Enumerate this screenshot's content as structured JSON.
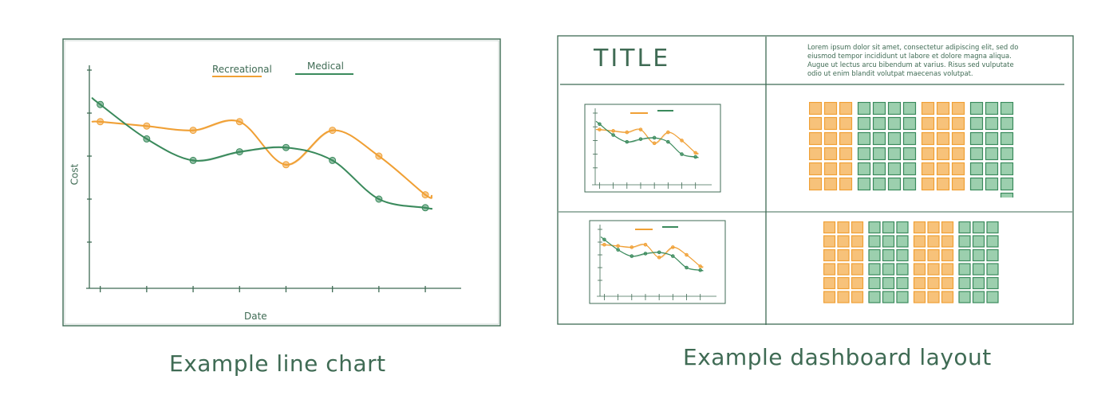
{
  "captions": {
    "line_chart": "Example line chart",
    "dashboard": "Example dashboard layout"
  },
  "colors": {
    "ink": "#3f6b54",
    "recreational": "#f0a035",
    "medical": "#3a8a5c",
    "tile_orange_fill": "#f7c27a",
    "tile_green_fill": "#9ccfae"
  },
  "chart_data": {
    "type": "line",
    "xlabel": "Date",
    "ylabel": "Cost",
    "x": [
      1,
      2,
      3,
      4,
      5,
      6,
      7,
      8
    ],
    "series": [
      {
        "name": "Recreational",
        "values": [
          3.8,
          3.7,
          3.6,
          3.8,
          2.8,
          3.6,
          3.0,
          2.1
        ]
      },
      {
        "name": "Medical",
        "values": [
          4.2,
          3.4,
          2.9,
          3.1,
          3.2,
          2.9,
          2.0,
          1.8
        ]
      }
    ],
    "grid": false
  },
  "dashboard": {
    "title": "TITLE",
    "body_text": "Lorem ipsum dolor sit amet, consectetur adipiscing elit, sed do eiusmod tempor incididunt ut labore et dolore magna aliqua. Augue ut lectus arcu bibendum at varius. Risus sed vulputate odio ut enim blandit volutpat maecenas volutpat."
  }
}
